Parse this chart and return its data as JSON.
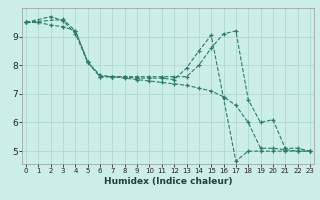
{
  "xlabel": "Humidex (Indice chaleur)",
  "bg_color": "#cceee8",
  "grid_color": "#aad4cc",
  "line_color": "#2d7a6a",
  "yticks": [
    5,
    6,
    7,
    8,
    9
  ],
  "xticks": [
    0,
    1,
    2,
    3,
    4,
    5,
    6,
    7,
    8,
    9,
    10,
    11,
    12,
    13,
    14,
    15,
    16,
    17,
    18,
    19,
    20,
    21,
    22,
    23
  ],
  "xlim": [
    -0.3,
    23.3
  ],
  "ylim": [
    4.55,
    10.0
  ],
  "line1x": [
    0,
    1
  ],
  "line1y": [
    9.5,
    9.5
  ],
  "line2x": [
    0,
    1,
    2,
    3,
    4,
    5,
    6,
    7,
    8,
    9,
    10,
    11,
    12,
    13,
    14,
    15,
    16,
    17,
    18,
    19,
    20,
    21,
    22,
    23
  ],
  "line2y": [
    9.5,
    9.5,
    9.4,
    9.35,
    9.2,
    8.1,
    7.65,
    7.6,
    7.55,
    7.5,
    7.45,
    7.4,
    7.35,
    7.3,
    7.2,
    7.1,
    6.9,
    6.6,
    6.0,
    5.1,
    5.1,
    5.05,
    5.0,
    5.0
  ],
  "line3x": [
    0,
    3,
    4,
    5,
    6,
    7,
    8,
    9,
    10,
    11,
    12,
    13,
    14,
    15,
    16,
    17,
    18,
    19,
    20,
    21,
    22,
    23
  ],
  "line3y": [
    9.5,
    9.6,
    9.2,
    8.1,
    7.6,
    7.6,
    7.6,
    7.6,
    7.6,
    7.6,
    7.6,
    7.6,
    8.0,
    8.6,
    9.1,
    9.2,
    6.8,
    6.0,
    6.1,
    5.1,
    5.1,
    5.0
  ],
  "line4x": [
    0,
    2,
    3,
    4,
    5,
    6,
    7,
    8,
    9,
    10,
    11,
    12,
    13,
    14,
    15,
    16,
    17,
    18,
    19,
    20,
    21,
    22,
    23
  ],
  "line4y": [
    9.5,
    9.7,
    9.55,
    9.1,
    8.1,
    7.6,
    7.6,
    7.6,
    7.55,
    7.55,
    7.55,
    7.5,
    7.9,
    8.5,
    9.05,
    6.85,
    4.65,
    5.0,
    5.0,
    5.0,
    5.0,
    5.0,
    5.0
  ]
}
